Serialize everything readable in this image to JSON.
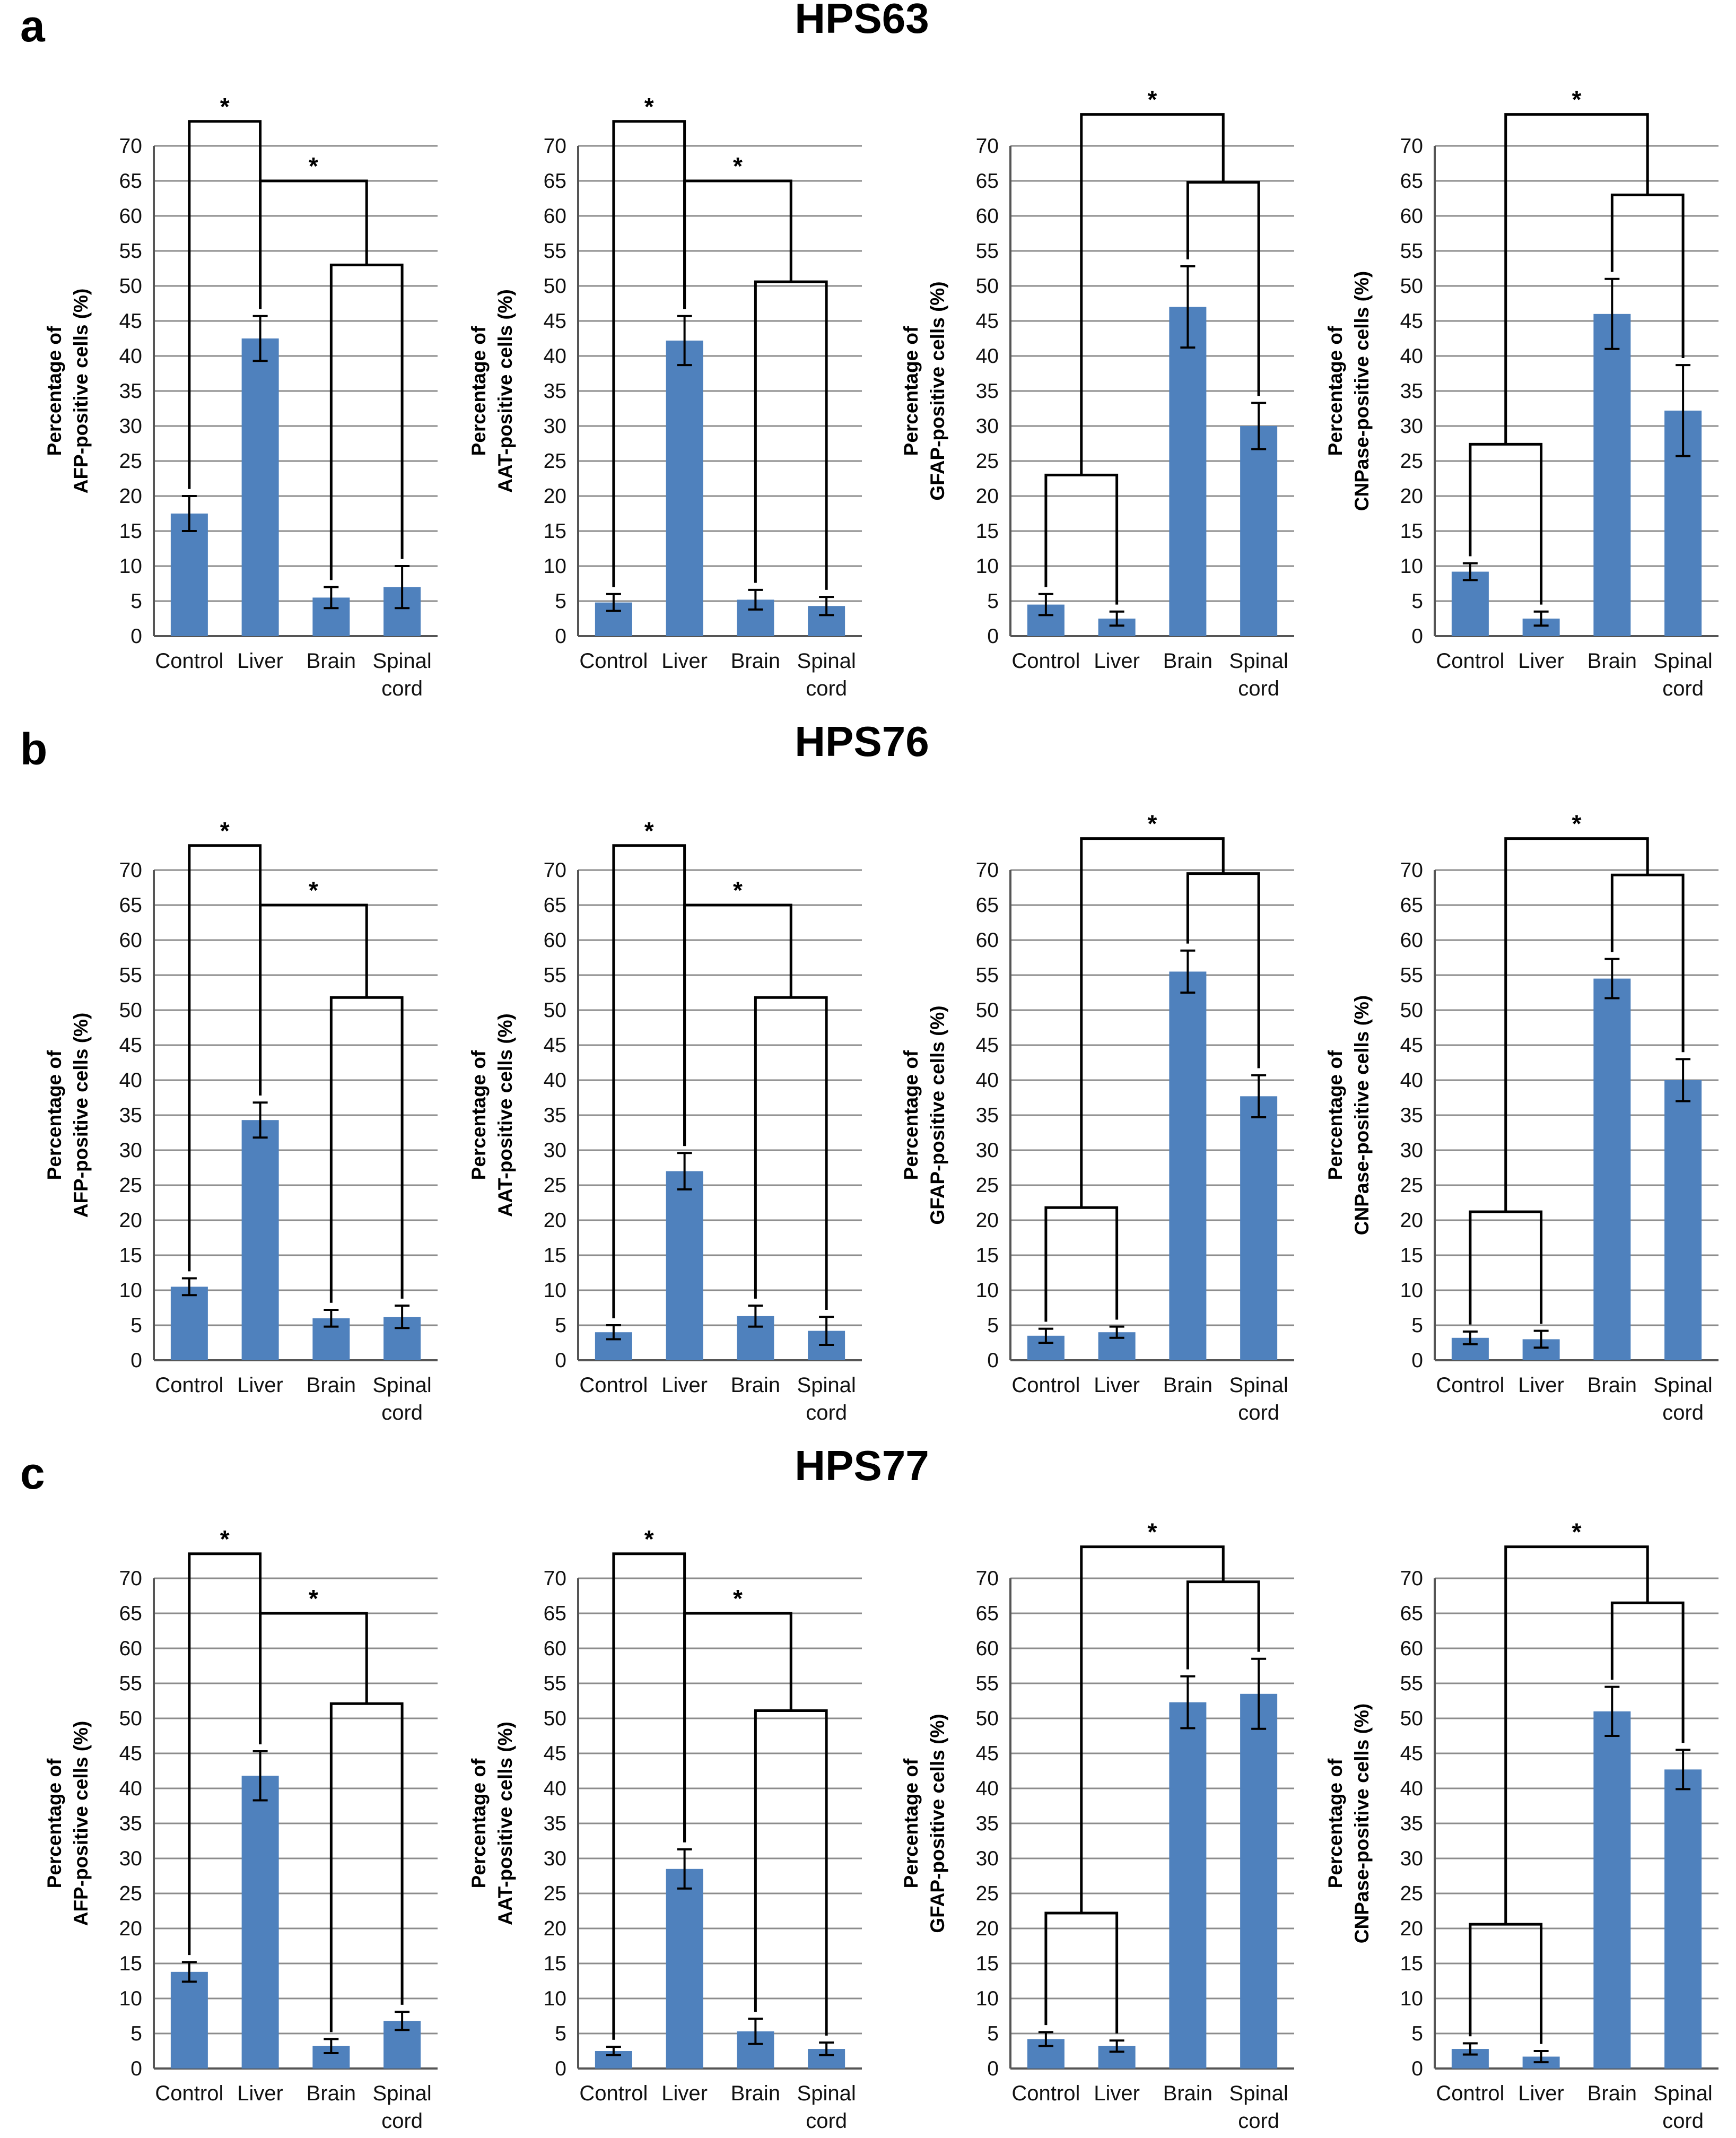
{
  "chart_data": [
    {
      "type": "bar",
      "panel": "a",
      "title": "HPS63",
      "ylabel_line1": "Percentage of",
      "ylabel_line2": "AFP-positive cells (%)",
      "categories": [
        "Control",
        "Liver",
        "Brain",
        "Spinal cord"
      ],
      "values": [
        17.5,
        42.5,
        5.5,
        7
      ],
      "errors": [
        2.5,
        3.2,
        1.5,
        3
      ],
      "ylim": [
        0,
        70
      ],
      "yticks": [
        0,
        5,
        10,
        15,
        20,
        25,
        30,
        35,
        40,
        45,
        50,
        55,
        60,
        65,
        70
      ],
      "sig_label": "*",
      "comparison": "pairwise"
    },
    {
      "type": "bar",
      "panel": "a",
      "title": "HPS63",
      "ylabel_line1": "Percentage of",
      "ylabel_line2": "AAT-positive cells (%)",
      "categories": [
        "Control",
        "Liver",
        "Brain",
        "Spinal cord"
      ],
      "values": [
        4.8,
        42.2,
        5.2,
        4.3
      ],
      "errors": [
        1.2,
        3.5,
        1.4,
        1.3
      ],
      "ylim": [
        0,
        70
      ],
      "yticks": [
        0,
        5,
        10,
        15,
        20,
        25,
        30,
        35,
        40,
        45,
        50,
        55,
        60,
        65,
        70
      ],
      "sig_label": "*",
      "comparison": "pairwise"
    },
    {
      "type": "bar",
      "panel": "a",
      "title": "HPS63",
      "ylabel_line1": "Percentage of",
      "ylabel_line2": "GFAP-positive cells (%)",
      "categories": [
        "Control",
        "Liver",
        "Brain",
        "Spinal cord"
      ],
      "values": [
        4.5,
        2.5,
        47,
        30
      ],
      "errors": [
        1.5,
        1.0,
        5.8,
        3.3
      ],
      "ylim": [
        0,
        70
      ],
      "yticks": [
        0,
        5,
        10,
        15,
        20,
        25,
        30,
        35,
        40,
        45,
        50,
        55,
        60,
        65,
        70
      ],
      "sig_label": "*",
      "comparison": "grouped"
    },
    {
      "type": "bar",
      "panel": "a",
      "title": "HPS63",
      "ylabel_line1": "Percentage of",
      "ylabel_line2": "CNPase-positive cells (%)",
      "categories": [
        "Control",
        "Liver",
        "Brain",
        "Spinal cord"
      ],
      "values": [
        9.2,
        2.5,
        46,
        32.2
      ],
      "errors": [
        1.2,
        1.0,
        5.0,
        6.5
      ],
      "ylim": [
        0,
        70
      ],
      "yticks": [
        0,
        5,
        10,
        15,
        20,
        25,
        30,
        35,
        40,
        45,
        50,
        55,
        60,
        65,
        70
      ],
      "sig_label": "*",
      "comparison": "grouped"
    },
    {
      "type": "bar",
      "panel": "b",
      "title": "HPS76",
      "ylabel_line1": "Percentage of",
      "ylabel_line2": "AFP-positive cells (%)",
      "categories": [
        "Control",
        "Liver",
        "Brain",
        "Spinal cord"
      ],
      "values": [
        10.5,
        34.3,
        6,
        6.2
      ],
      "errors": [
        1.2,
        2.5,
        1.2,
        1.6
      ],
      "ylim": [
        0,
        70
      ],
      "yticks": [
        0,
        5,
        10,
        15,
        20,
        25,
        30,
        35,
        40,
        45,
        50,
        55,
        60,
        65,
        70
      ],
      "sig_label": "*",
      "comparison": "pairwise"
    },
    {
      "type": "bar",
      "panel": "b",
      "title": "HPS76",
      "ylabel_line1": "Percentage of",
      "ylabel_line2": "AAT-positive cells (%)",
      "categories": [
        "Control",
        "Liver",
        "Brain",
        "Spinal cord"
      ],
      "values": [
        4,
        27,
        6.3,
        4.2
      ],
      "errors": [
        1.0,
        2.6,
        1.5,
        2.0
      ],
      "ylim": [
        0,
        70
      ],
      "yticks": [
        0,
        5,
        10,
        15,
        20,
        25,
        30,
        35,
        40,
        45,
        50,
        55,
        60,
        65,
        70
      ],
      "sig_label": "*",
      "comparison": "pairwise"
    },
    {
      "type": "bar",
      "panel": "b",
      "title": "HPS76",
      "ylabel_line1": "Percentage of",
      "ylabel_line2": "GFAP-positive cells (%)",
      "categories": [
        "Control",
        "Liver",
        "Brain",
        "Spinal cord"
      ],
      "values": [
        3.5,
        4,
        55.5,
        37.7
      ],
      "errors": [
        1.0,
        0.8,
        3.0,
        3.0
      ],
      "ylim": [
        0,
        70
      ],
      "yticks": [
        0,
        5,
        10,
        15,
        20,
        25,
        30,
        35,
        40,
        45,
        50,
        55,
        60,
        65,
        70
      ],
      "sig_label": "*",
      "comparison": "grouped"
    },
    {
      "type": "bar",
      "panel": "b",
      "title": "HPS76",
      "ylabel_line1": "Percentage of",
      "ylabel_line2": "CNPase-positive cells (%)",
      "categories": [
        "Control",
        "Liver",
        "Brain",
        "Spinal cord"
      ],
      "values": [
        3.2,
        3,
        54.5,
        40
      ],
      "errors": [
        0.9,
        1.2,
        2.8,
        3.0
      ],
      "ylim": [
        0,
        70
      ],
      "yticks": [
        0,
        5,
        10,
        15,
        20,
        25,
        30,
        35,
        40,
        45,
        50,
        55,
        60,
        65,
        70
      ],
      "sig_label": "*",
      "comparison": "grouped"
    },
    {
      "type": "bar",
      "panel": "c",
      "title": "HPS77",
      "ylabel_line1": "Percentage of",
      "ylabel_line2": "AFP-positive cells (%)",
      "categories": [
        "Control",
        "Liver",
        "Brain",
        "Spinal cord"
      ],
      "values": [
        13.8,
        41.8,
        3.2,
        6.8
      ],
      "errors": [
        1.4,
        3.5,
        1.0,
        1.3
      ],
      "ylim": [
        0,
        70
      ],
      "yticks": [
        0,
        5,
        10,
        15,
        20,
        25,
        30,
        35,
        40,
        45,
        50,
        55,
        60,
        65,
        70
      ],
      "sig_label": "*",
      "comparison": "pairwise"
    },
    {
      "type": "bar",
      "panel": "c",
      "title": "HPS77",
      "ylabel_line1": "Percentage of",
      "ylabel_line2": "AAT-positive cells (%)",
      "categories": [
        "Control",
        "Liver",
        "Brain",
        "Spinal cord"
      ],
      "values": [
        2.5,
        28.5,
        5.3,
        2.8
      ],
      "errors": [
        0.6,
        2.8,
        1.8,
        0.9
      ],
      "ylim": [
        0,
        70
      ],
      "yticks": [
        0,
        5,
        10,
        15,
        20,
        25,
        30,
        35,
        40,
        45,
        50,
        55,
        60,
        65,
        70
      ],
      "sig_label": "*",
      "comparison": "pairwise"
    },
    {
      "type": "bar",
      "panel": "c",
      "title": "HPS77",
      "ylabel_line1": "Percentage of",
      "ylabel_line2": "GFAP-positive cells (%)",
      "categories": [
        "Control",
        "Liver",
        "Brain",
        "Spinal cord"
      ],
      "values": [
        4.2,
        3.2,
        52.3,
        53.5
      ],
      "errors": [
        1.0,
        0.8,
        3.7,
        5.0
      ],
      "ylim": [
        0,
        70
      ],
      "yticks": [
        0,
        5,
        10,
        15,
        20,
        25,
        30,
        35,
        40,
        45,
        50,
        55,
        60,
        65,
        70
      ],
      "sig_label": "*",
      "comparison": "grouped"
    },
    {
      "type": "bar",
      "panel": "c",
      "title": "HPS77",
      "ylabel_line1": "Percentage of",
      "ylabel_line2": "CNPase-positive cells (%)",
      "categories": [
        "Control",
        "Liver",
        "Brain",
        "Spinal cord"
      ],
      "values": [
        2.8,
        1.7,
        51,
        42.7
      ],
      "errors": [
        0.8,
        0.8,
        3.5,
        2.8
      ],
      "ylim": [
        0,
        70
      ],
      "yticks": [
        0,
        5,
        10,
        15,
        20,
        25,
        30,
        35,
        40,
        45,
        50,
        55,
        60,
        65,
        70
      ],
      "sig_label": "*",
      "comparison": "grouped"
    }
  ],
  "panels": [
    {
      "label": "a",
      "title": "HPS63"
    },
    {
      "label": "b",
      "title": "HPS76"
    },
    {
      "label": "c",
      "title": "HPS77"
    }
  ],
  "colors": {
    "bar": "#4f81bd",
    "grid": "#8c8c8c"
  }
}
